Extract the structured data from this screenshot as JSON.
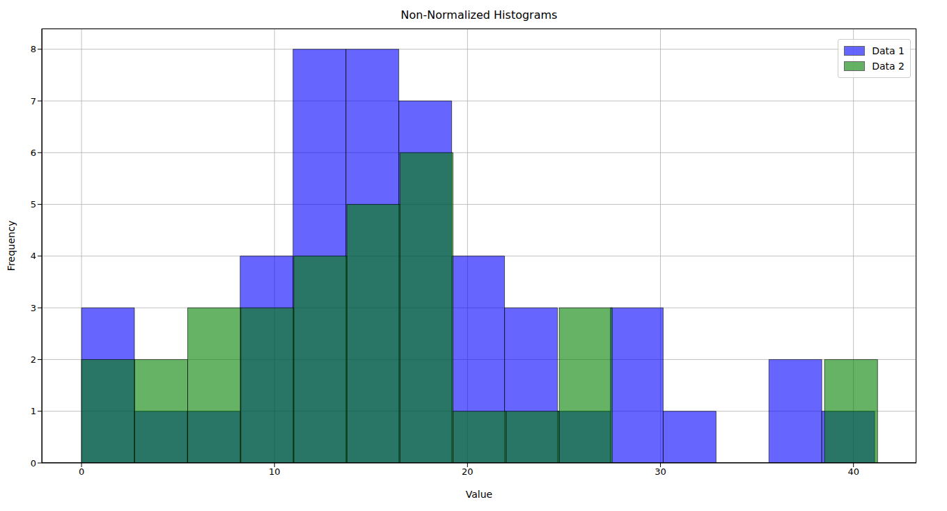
{
  "chart_data": {
    "type": "histogram",
    "title": "Non-Normalized Histograms",
    "x_label": "Value",
    "y_label": "Frequency",
    "series": [
      {
        "name": "Data 1",
        "color": "blue",
        "bins": [
          0,
          2.74,
          5.48,
          8.22,
          10.96,
          13.7,
          16.44,
          19.18,
          21.92,
          24.66,
          27.4,
          30.14,
          32.88,
          35.62,
          38.36,
          41.1
        ],
        "values": [
          3,
          1,
          1,
          4,
          8,
          8,
          7,
          4,
          3,
          1,
          3,
          1,
          0,
          2,
          1
        ]
      },
      {
        "name": "Data 2",
        "color": "green",
        "bins": [
          0,
          2.75,
          5.5,
          8.25,
          11,
          13.75,
          16.5,
          19.25,
          22,
          24.75,
          27.5,
          30.25,
          33,
          35.75,
          38.5,
          41.25
        ],
        "values": [
          2,
          2,
          3,
          3,
          4,
          5,
          6,
          1,
          1,
          3,
          0,
          0,
          0,
          0,
          2
        ]
      }
    ],
    "xlim": [
      -2.06,
      43.26
    ],
    "xticks": [
      0,
      10,
      20,
      30,
      40
    ],
    "ylim": [
      0,
      8.4
    ],
    "yticks": [
      0,
      1,
      2,
      3,
      4,
      5,
      6,
      7,
      8
    ],
    "grid": true,
    "legend": "upper right"
  }
}
